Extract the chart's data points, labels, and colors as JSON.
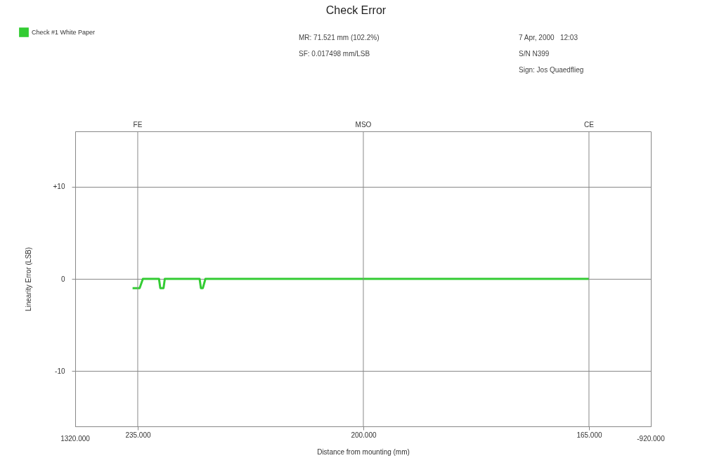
{
  "chart_data": {
    "type": "line",
    "title": "Check Error",
    "xlabel": "Distance from mounting (mm)",
    "ylabel": "Linearity Error (LSB)",
    "annotations": [
      "MR: 71.521 mm (102.2%)",
      "SF: 0.017498 mm/LSB",
      "7 Apr, 2000   12:03",
      "S/N N399",
      "Sign: Jos Quaedflieg",
      "1320.000",
      "-920.000"
    ],
    "series": [
      {
        "name": "Check #1 White Paper",
        "color": "#33cc33",
        "x": [
          235.8,
          234.7,
          234.2,
          231.7,
          231.5,
          231.0,
          230.8,
          225.4,
          225.2,
          224.9,
          224.5,
          165
        ],
        "values": [
          -1,
          -1,
          0,
          0,
          -1,
          -1,
          0,
          0,
          -1,
          -1,
          0,
          0
        ]
      }
    ],
    "xlim": [
      244.7,
      155.4
    ],
    "xticks": [
      {
        "value": 235,
        "label": "235.000"
      },
      {
        "value": 200,
        "label": "200.000"
      },
      {
        "value": 165,
        "label": "165.000"
      }
    ],
    "ylim": [
      -16,
      16
    ],
    "yticks": [
      {
        "value": -10,
        "label": "-10"
      },
      0,
      {
        "value": 10,
        "label": "+10"
      }
    ],
    "ref_lines": [
      {
        "axis": "x",
        "value": 235,
        "label": "FE"
      },
      {
        "axis": "x",
        "value": 200,
        "label": "MSO"
      },
      {
        "axis": "x",
        "value": 165,
        "label": "CE"
      }
    ],
    "grid": "y",
    "legend": "top left",
    "line_style": "solid",
    "marker": "none"
  }
}
